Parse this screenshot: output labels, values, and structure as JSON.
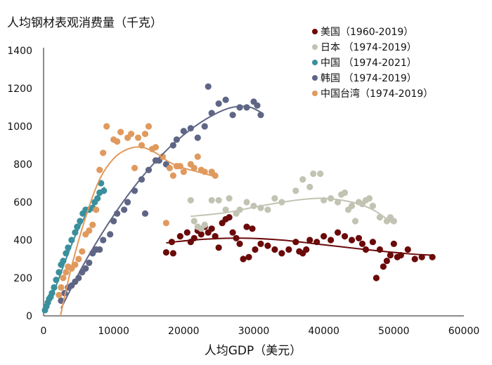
{
  "chart_data": {
    "type": "scatter",
    "title": "",
    "ylabel": "人均钢材表观消费量（千克）",
    "xlabel": "人均GDP（美元）",
    "xlim": [
      0,
      60000
    ],
    "ylim": [
      0,
      1400
    ],
    "xticks": [
      0,
      10000,
      20000,
      30000,
      40000,
      50000,
      60000
    ],
    "yticks": [
      0,
      200,
      400,
      600,
      800,
      1000,
      1200,
      1400
    ],
    "grid": false,
    "legend_position": "top-right",
    "series": [
      {
        "name": "美国（1960-2019）",
        "color": "#6b0a0a",
        "points": [
          [
            17500,
            335
          ],
          [
            18500,
            330
          ],
          [
            18300,
            390
          ],
          [
            19500,
            420
          ],
          [
            20500,
            440
          ],
          [
            21000,
            390
          ],
          [
            21500,
            410
          ],
          [
            22000,
            450
          ],
          [
            22500,
            430
          ],
          [
            23000,
            470
          ],
          [
            23500,
            440
          ],
          [
            24000,
            460
          ],
          [
            24500,
            420
          ],
          [
            25000,
            360
          ],
          [
            25500,
            490
          ],
          [
            26000,
            510
          ],
          [
            26500,
            520
          ],
          [
            27000,
            440
          ],
          [
            27500,
            410
          ],
          [
            28000,
            380
          ],
          [
            28500,
            300
          ],
          [
            29000,
            470
          ],
          [
            29300,
            310
          ],
          [
            29800,
            460
          ],
          [
            30200,
            350
          ],
          [
            31000,
            380
          ],
          [
            32000,
            370
          ],
          [
            33000,
            350
          ],
          [
            34000,
            330
          ],
          [
            35000,
            350
          ],
          [
            36000,
            390
          ],
          [
            36500,
            340
          ],
          [
            37000,
            330
          ],
          [
            37500,
            350
          ],
          [
            38000,
            400
          ],
          [
            39000,
            390
          ],
          [
            40000,
            420
          ],
          [
            41000,
            400
          ],
          [
            42000,
            440
          ],
          [
            43000,
            420
          ],
          [
            44000,
            400
          ],
          [
            45000,
            410
          ],
          [
            45500,
            380
          ],
          [
            46000,
            350
          ],
          [
            47000,
            390
          ],
          [
            47500,
            200
          ],
          [
            48000,
            350
          ],
          [
            48500,
            260
          ],
          [
            49000,
            290
          ],
          [
            49500,
            320
          ],
          [
            50000,
            380
          ],
          [
            50500,
            310
          ],
          [
            51000,
            320
          ],
          [
            52000,
            350
          ],
          [
            53000,
            300
          ],
          [
            54000,
            310
          ],
          [
            55500,
            310
          ]
        ],
        "trend": [
          [
            17500,
            385
          ],
          [
            22000,
            402
          ],
          [
            28000,
            410
          ],
          [
            34000,
            400
          ],
          [
            40000,
            375
          ],
          [
            46000,
            350
          ],
          [
            52000,
            328
          ],
          [
            55500,
            320
          ]
        ]
      },
      {
        "name": "日本 （1974-2019）",
        "color": "#c3c3b3",
        "points": [
          [
            21000,
            610
          ],
          [
            21500,
            500
          ],
          [
            22000,
            470
          ],
          [
            22500,
            460
          ],
          [
            23000,
            480
          ],
          [
            24000,
            610
          ],
          [
            25000,
            610
          ],
          [
            26000,
            560
          ],
          [
            26500,
            620
          ],
          [
            27500,
            540
          ],
          [
            28000,
            560
          ],
          [
            29000,
            600
          ],
          [
            30000,
            580
          ],
          [
            31000,
            570
          ],
          [
            32000,
            560
          ],
          [
            33000,
            620
          ],
          [
            34000,
            600
          ],
          [
            36000,
            660
          ],
          [
            37000,
            720
          ],
          [
            38000,
            680
          ],
          [
            38500,
            750
          ],
          [
            39500,
            750
          ],
          [
            40000,
            610
          ],
          [
            41000,
            620
          ],
          [
            42000,
            600
          ],
          [
            42500,
            640
          ],
          [
            43000,
            650
          ],
          [
            43500,
            560
          ],
          [
            44000,
            580
          ],
          [
            44500,
            500
          ],
          [
            45000,
            600
          ],
          [
            45500,
            590
          ],
          [
            46000,
            610
          ],
          [
            46500,
            620
          ],
          [
            47000,
            580
          ],
          [
            48000,
            520
          ],
          [
            49000,
            500
          ],
          [
            49500,
            520
          ],
          [
            50000,
            500
          ]
        ],
        "trend": [
          [
            21000,
            525
          ],
          [
            26000,
            545
          ],
          [
            31000,
            580
          ],
          [
            36000,
            610
          ],
          [
            40000,
            620
          ],
          [
            44000,
            600
          ],
          [
            47000,
            560
          ],
          [
            50000,
            485
          ]
        ]
      },
      {
        "name": "中国 （1974-2021）",
        "color": "#3a8f9c",
        "points": [
          [
            200,
            30
          ],
          [
            400,
            50
          ],
          [
            600,
            70
          ],
          [
            800,
            90
          ],
          [
            1000,
            100
          ],
          [
            1200,
            120
          ],
          [
            1500,
            150
          ],
          [
            1800,
            190
          ],
          [
            2200,
            230
          ],
          [
            2500,
            270
          ],
          [
            2800,
            290
          ],
          [
            3200,
            330
          ],
          [
            3500,
            360
          ],
          [
            4000,
            400
          ],
          [
            4500,
            440
          ],
          [
            4800,
            470
          ],
          [
            5200,
            500
          ],
          [
            5600,
            540
          ],
          [
            6000,
            560
          ],
          [
            6500,
            560
          ],
          [
            7000,
            570
          ],
          [
            7300,
            600
          ],
          [
            7700,
            620
          ],
          [
            8000,
            650
          ],
          [
            8200,
            700
          ],
          [
            8600,
            660
          ]
        ],
        "trend": [
          [
            200,
            20
          ],
          [
            1500,
            130
          ],
          [
            3000,
            280
          ],
          [
            4500,
            420
          ],
          [
            6000,
            530
          ],
          [
            7500,
            610
          ],
          [
            8700,
            680
          ]
        ]
      },
      {
        "name": "韩国 （1974-2019）",
        "color": "#5f6585",
        "points": [
          [
            2500,
            80
          ],
          [
            3000,
            120
          ],
          [
            3500,
            150
          ],
          [
            4000,
            160
          ],
          [
            4500,
            180
          ],
          [
            5000,
            200
          ],
          [
            5500,
            230
          ],
          [
            6000,
            250
          ],
          [
            6500,
            280
          ],
          [
            7000,
            330
          ],
          [
            7500,
            350
          ],
          [
            8000,
            350
          ],
          [
            8500,
            400
          ],
          [
            9500,
            430
          ],
          [
            10000,
            500
          ],
          [
            10500,
            540
          ],
          [
            11500,
            560
          ],
          [
            12000,
            600
          ],
          [
            13000,
            660
          ],
          [
            14000,
            720
          ],
          [
            14500,
            540
          ],
          [
            15000,
            770
          ],
          [
            16000,
            820
          ],
          [
            16500,
            820
          ],
          [
            17500,
            800
          ],
          [
            18500,
            900
          ],
          [
            19000,
            930
          ],
          [
            20000,
            975
          ],
          [
            21000,
            990
          ],
          [
            22000,
            940
          ],
          [
            23000,
            1000
          ],
          [
            23500,
            1210
          ],
          [
            24000,
            1070
          ],
          [
            25000,
            1120
          ],
          [
            26000,
            1140
          ],
          [
            27000,
            1060
          ],
          [
            28000,
            1100
          ],
          [
            29000,
            1100
          ],
          [
            30000,
            1130
          ],
          [
            30500,
            1110
          ],
          [
            31000,
            1060
          ]
        ],
        "trend": [
          [
            2500,
            40
          ],
          [
            6000,
            290
          ],
          [
            10000,
            530
          ],
          [
            14000,
            730
          ],
          [
            18000,
            890
          ],
          [
            22000,
            1010
          ],
          [
            26000,
            1090
          ],
          [
            29000,
            1105
          ],
          [
            31000,
            1075
          ]
        ]
      },
      {
        "name": "中国台湾（1974-2019）",
        "color": "#e09a5e",
        "points": [
          [
            2200,
            110
          ],
          [
            2500,
            150
          ],
          [
            2800,
            200
          ],
          [
            3200,
            230
          ],
          [
            3500,
            260
          ],
          [
            4000,
            250
          ],
          [
            4500,
            270
          ],
          [
            5000,
            300
          ],
          [
            5500,
            340
          ],
          [
            6000,
            430
          ],
          [
            6500,
            450
          ],
          [
            7000,
            480
          ],
          [
            7500,
            560
          ],
          [
            8000,
            770
          ],
          [
            8500,
            860
          ],
          [
            9000,
            1000
          ],
          [
            10000,
            930
          ],
          [
            10500,
            920
          ],
          [
            11000,
            970
          ],
          [
            12000,
            940
          ],
          [
            12500,
            960
          ],
          [
            13000,
            780
          ],
          [
            13500,
            940
          ],
          [
            14000,
            900
          ],
          [
            14500,
            960
          ],
          [
            15000,
            1000
          ],
          [
            15500,
            880
          ],
          [
            16000,
            890
          ],
          [
            17000,
            840
          ],
          [
            18000,
            780
          ],
          [
            18500,
            740
          ],
          [
            17500,
            490
          ],
          [
            19000,
            790
          ],
          [
            19500,
            790
          ],
          [
            20000,
            760
          ],
          [
            21000,
            800
          ],
          [
            21500,
            780
          ],
          [
            22000,
            840
          ],
          [
            22500,
            770
          ],
          [
            23000,
            760
          ],
          [
            24000,
            760
          ],
          [
            24500,
            740
          ]
        ],
        "trend": [
          [
            2400,
            0
          ],
          [
            4000,
            260
          ],
          [
            6000,
            520
          ],
          [
            8000,
            720
          ],
          [
            10000,
            830
          ],
          [
            12000,
            880
          ],
          [
            14000,
            890
          ],
          [
            16000,
            860
          ],
          [
            18000,
            810
          ],
          [
            20000,
            780
          ],
          [
            22000,
            760
          ],
          [
            24500,
            735
          ]
        ]
      }
    ]
  }
}
